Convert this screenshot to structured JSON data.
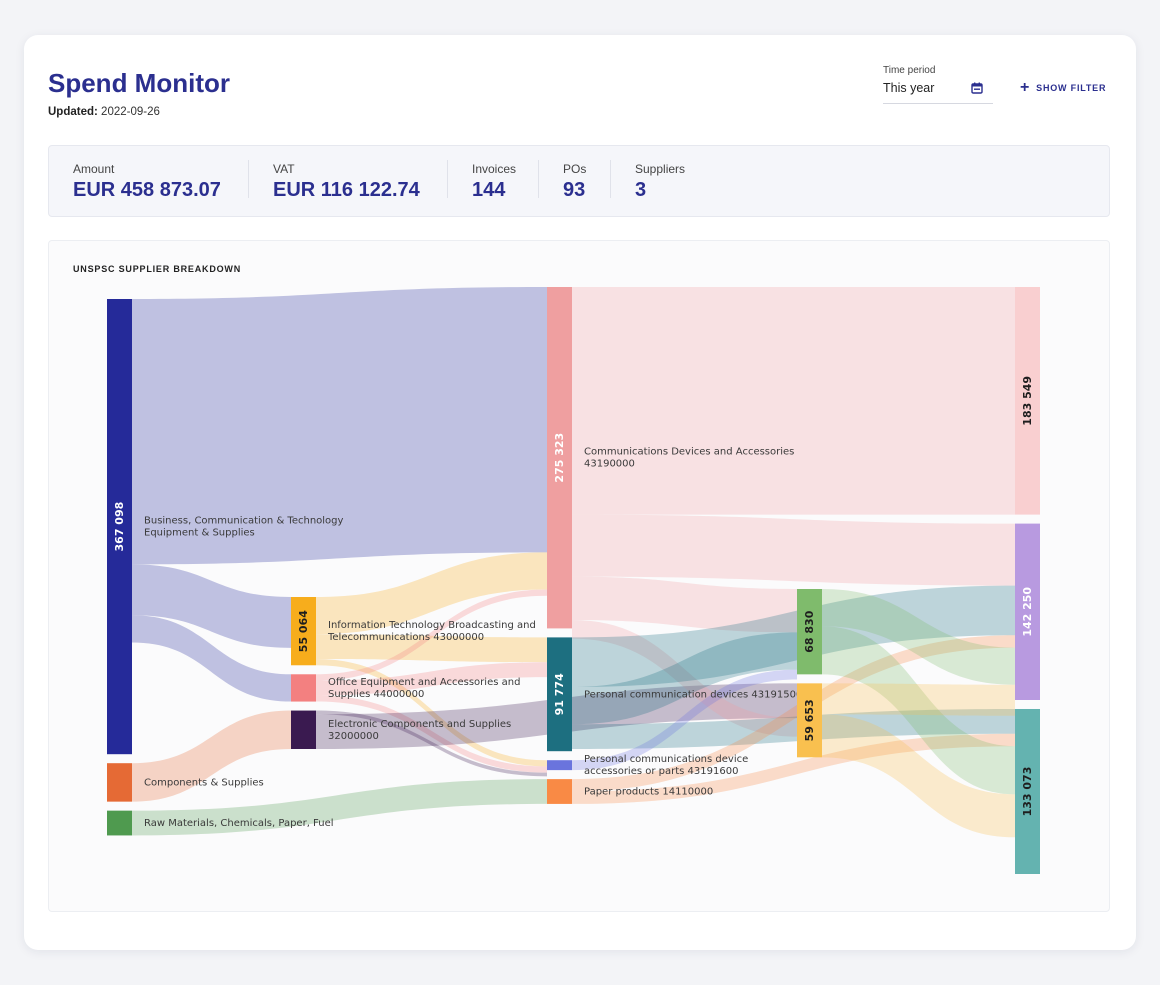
{
  "header": {
    "title": "Spend Monitor",
    "updated_label": "Updated:",
    "updated_value": "2022-09-26"
  },
  "time_period": {
    "label": "Time period",
    "value": "This year",
    "icon": "calendar-icon"
  },
  "filter_button": {
    "label": "SHOW FILTER",
    "icon": "plus-icon"
  },
  "stats": [
    {
      "label": "Amount",
      "value": "EUR 458 873.07"
    },
    {
      "label": "VAT",
      "value": "EUR 116 122.74"
    },
    {
      "label": "Invoices",
      "value": "144"
    },
    {
      "label": "POs",
      "value": "93"
    },
    {
      "label": "Suppliers",
      "value": "3"
    }
  ],
  "chart_title": "UNSPSC SUPPLIER BREAKDOWN",
  "colors": {
    "accent": "#2b2f8f"
  },
  "chart_data": {
    "type": "sankey",
    "nodes": [
      {
        "id": "seg1",
        "column": 0,
        "label": "Business, Communication & Technology Equipment & Supplies",
        "value": 367098,
        "value_label": "367 098",
        "color": "#252a99"
      },
      {
        "id": "seg2",
        "column": 0,
        "label": "Components & Supplies",
        "value": 31000,
        "color": "#e56a35"
      },
      {
        "id": "seg3",
        "column": 0,
        "label": "Raw Materials, Chemicals, Paper, Fuel",
        "value": 20000,
        "color": "#4f9a4f"
      },
      {
        "id": "fam1",
        "column": 1,
        "label": "Information Technology Broadcasting and Telecommunications 43000000",
        "value": 55064,
        "value_label": "55 064",
        "color": "#f7ad1c"
      },
      {
        "id": "fam2",
        "column": 1,
        "label": "Office Equipment and Accessories and Supplies 44000000",
        "value": 22000,
        "color": "#f38080"
      },
      {
        "id": "fam3",
        "column": 1,
        "label": "Electronic Components and Supplies 32000000",
        "value": 31000,
        "color": "#3a1a50"
      },
      {
        "id": "com1",
        "column": 2,
        "label": "Communications Devices and Accessories 43190000",
        "value": 275323,
        "value_label": "275 323",
        "color": "#ef9fa0"
      },
      {
        "id": "com2",
        "column": 2,
        "label": "Personal communication devices 43191500",
        "value": 91774,
        "value_label": "91 774",
        "color": "#1d6f80"
      },
      {
        "id": "com3",
        "column": 2,
        "label": "Personal communications device accessories or parts 43191600",
        "value": 8000,
        "color": "#6a74dd"
      },
      {
        "id": "com4",
        "column": 2,
        "label": "Paper products 14110000",
        "value": 20000,
        "color": "#f98a45"
      },
      {
        "id": "sup1",
        "column": 3,
        "label": "",
        "value": 68830,
        "value_label": "68 830",
        "color": "#7fbb6c"
      },
      {
        "id": "sup2",
        "column": 3,
        "label": "",
        "value": 59653,
        "value_label": "59 653",
        "color": "#f9c04f"
      },
      {
        "id": "dst1",
        "column": 4,
        "label": "",
        "value": 183549,
        "value_label": "183 549",
        "color": "#f9cfd0"
      },
      {
        "id": "dst2",
        "column": 4,
        "label": "",
        "value": 142250,
        "value_label": "142 250",
        "color": "#b89ae0"
      },
      {
        "id": "dst3",
        "column": 4,
        "label": "",
        "value": 133073,
        "value_label": "133 073",
        "color": "#64b3b0"
      }
    ],
    "links": [
      {
        "source": "seg1",
        "target": "com1",
        "value": 214000
      },
      {
        "source": "seg1",
        "target": "fam1",
        "value": 41000
      },
      {
        "source": "seg1",
        "target": "fam2",
        "value": 22000
      },
      {
        "source": "seg2",
        "target": "fam3",
        "value": 31000
      },
      {
        "source": "seg3",
        "target": "com4",
        "value": 20000
      },
      {
        "source": "fam1",
        "target": "com1",
        "value": 30000
      },
      {
        "source": "fam1",
        "target": "com2",
        "value": 20000
      },
      {
        "source": "fam1",
        "target": "com3",
        "value": 5000
      },
      {
        "source": "fam2",
        "target": "com1",
        "value": 5000
      },
      {
        "source": "fam2",
        "target": "com2",
        "value": 12000
      },
      {
        "source": "fam2",
        "target": "com3",
        "value": 5000
      },
      {
        "source": "fam3",
        "target": "com3",
        "value": 3000
      },
      {
        "source": "fam3",
        "target": "sup2",
        "value": 28000
      },
      {
        "source": "com1",
        "target": "dst1",
        "value": 183549
      },
      {
        "source": "com1",
        "target": "dst2",
        "value": 50000
      },
      {
        "source": "com1",
        "target": "sup1",
        "value": 35000
      },
      {
        "source": "com1",
        "target": "sup2",
        "value": 15000
      },
      {
        "source": "com2",
        "target": "dst2",
        "value": 40000
      },
      {
        "source": "com2",
        "target": "sup1",
        "value": 30000
      },
      {
        "source": "com2",
        "target": "dst3",
        "value": 20000
      },
      {
        "source": "com3",
        "target": "sup1",
        "value": 8000
      },
      {
        "source": "com4",
        "target": "dst2",
        "value": 10000
      },
      {
        "source": "com4",
        "target": "dst3",
        "value": 10000
      },
      {
        "source": "sup1",
        "target": "dst2",
        "value": 30000
      },
      {
        "source": "sup1",
        "target": "dst3",
        "value": 38830
      },
      {
        "source": "sup2",
        "target": "dst2",
        "value": 25000
      },
      {
        "source": "sup2",
        "target": "dst3",
        "value": 34653
      }
    ]
  }
}
